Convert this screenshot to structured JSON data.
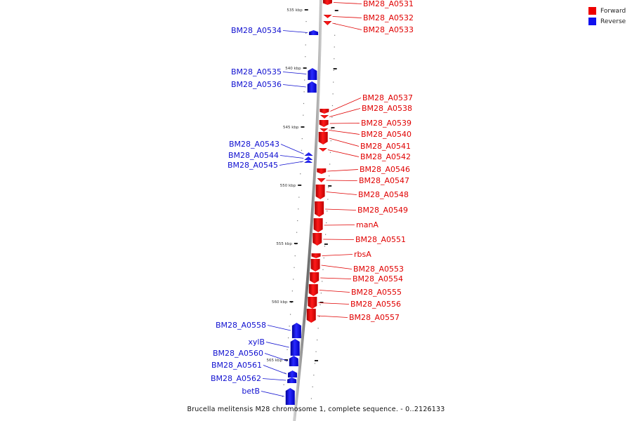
{
  "legend": {
    "forward": {
      "label": "Forward",
      "color": "#ee0000"
    },
    "reverse": {
      "label": "Reverse",
      "color": "#1111ee"
    }
  },
  "caption": "Brucella melitensis M28 chromosome 1, complete sequence. - 0..2126133",
  "scale_ticks": [
    "535 kbp",
    "540 kbp",
    "545 kbp",
    "550 kbp",
    "555 kbp",
    "560 kbp",
    "565 kbp"
  ],
  "genes": [
    {
      "name": "BM28_A0531",
      "strand": "forward"
    },
    {
      "name": "BM28_A0532",
      "strand": "forward"
    },
    {
      "name": "BM28_A0533",
      "strand": "forward"
    },
    {
      "name": "BM28_A0534",
      "strand": "reverse"
    },
    {
      "name": "BM28_A0535",
      "strand": "reverse"
    },
    {
      "name": "BM28_A0536",
      "strand": "reverse"
    },
    {
      "name": "BM28_A0537",
      "strand": "forward"
    },
    {
      "name": "BM28_A0538",
      "strand": "forward"
    },
    {
      "name": "BM28_A0539",
      "strand": "forward"
    },
    {
      "name": "BM28_A0540",
      "strand": "forward"
    },
    {
      "name": "BM28_A0541",
      "strand": "forward"
    },
    {
      "name": "BM28_A0542",
      "strand": "forward"
    },
    {
      "name": "BM28_A0543",
      "strand": "reverse"
    },
    {
      "name": "BM28_A0544",
      "strand": "reverse"
    },
    {
      "name": "BM28_A0545",
      "strand": "reverse"
    },
    {
      "name": "BM28_A0546",
      "strand": "forward"
    },
    {
      "name": "BM28_A0547",
      "strand": "forward"
    },
    {
      "name": "BM28_A0548",
      "strand": "forward"
    },
    {
      "name": "BM28_A0549",
      "strand": "forward"
    },
    {
      "name": "manA",
      "strand": "forward"
    },
    {
      "name": "BM28_A0551",
      "strand": "forward"
    },
    {
      "name": "rbsA",
      "strand": "forward"
    },
    {
      "name": "BM28_A0553",
      "strand": "forward"
    },
    {
      "name": "BM28_A0554",
      "strand": "forward"
    },
    {
      "name": "BM28_A0555",
      "strand": "forward"
    },
    {
      "name": "BM28_A0556",
      "strand": "forward"
    },
    {
      "name": "BM28_A0557",
      "strand": "forward"
    },
    {
      "name": "BM28_A0558",
      "strand": "reverse"
    },
    {
      "name": "xylB",
      "strand": "reverse"
    },
    {
      "name": "BM28_A0560",
      "strand": "reverse"
    },
    {
      "name": "BM28_A0561",
      "strand": "reverse"
    },
    {
      "name": "BM28_A0562",
      "strand": "reverse"
    },
    {
      "name": "betB",
      "strand": "reverse"
    }
  ]
}
